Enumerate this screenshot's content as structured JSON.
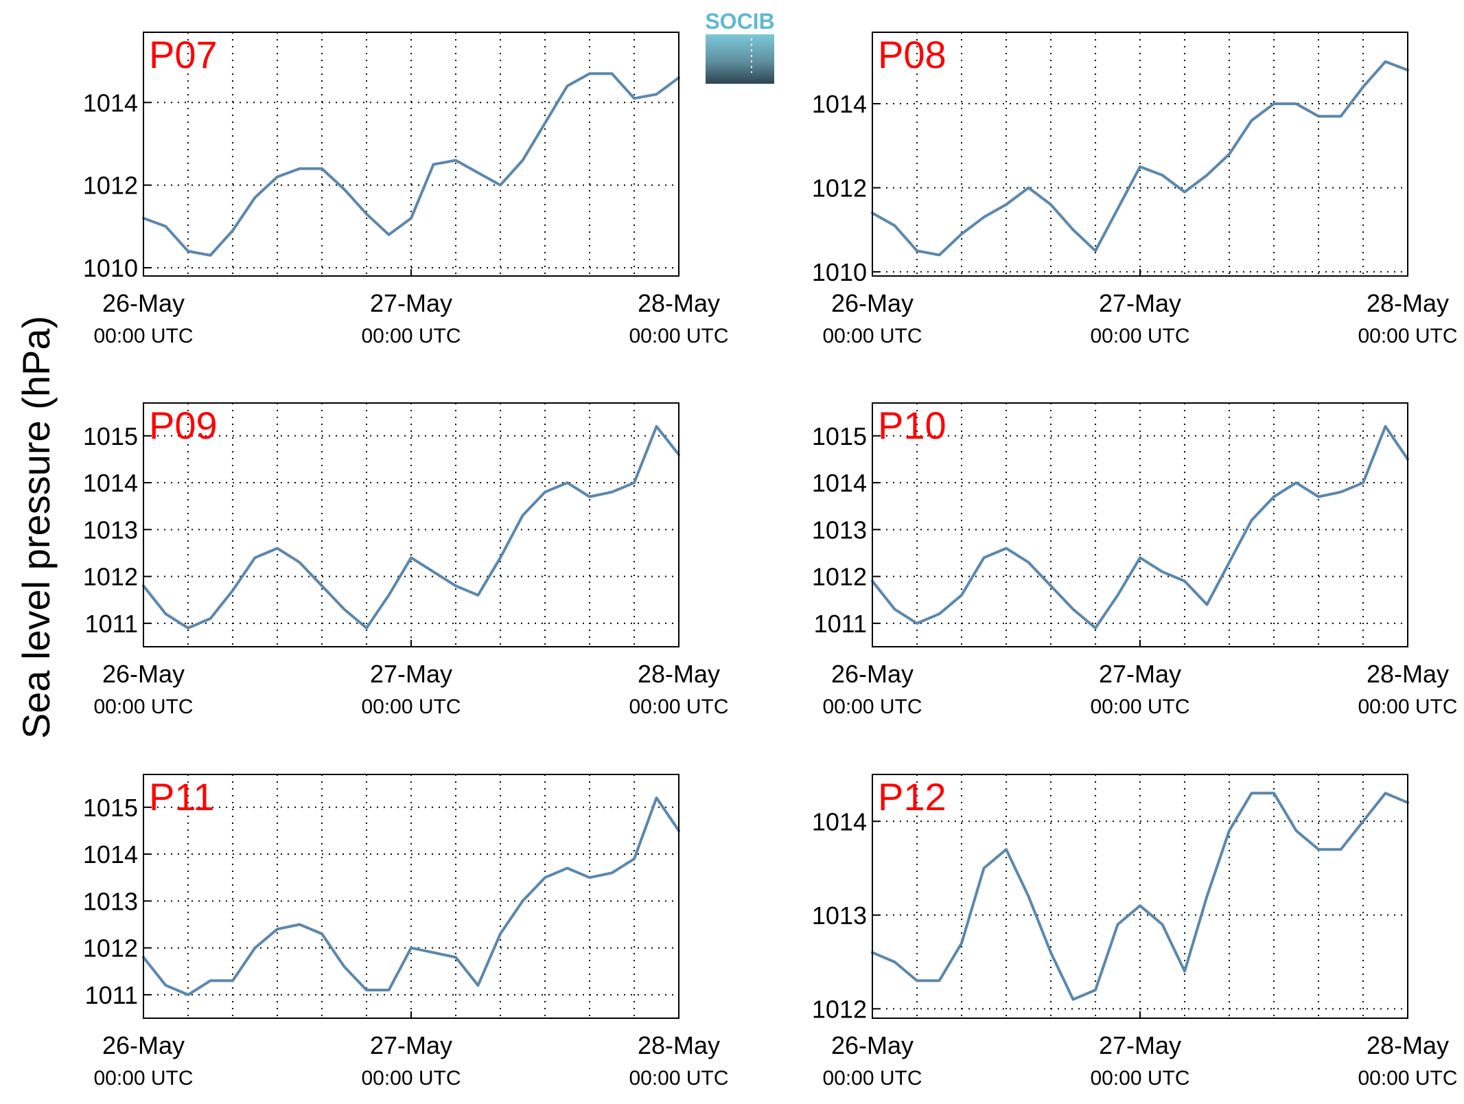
{
  "figure": {
    "ylabel": "Sea level pressure (hPa)",
    "logo_text": "SOCIB",
    "colors": {
      "line": "#5b87ad",
      "panel_title": "#ff0000",
      "axis": "#000000",
      "grid": "#000000"
    }
  },
  "chart_data": [
    {
      "type": "line",
      "title": "P07",
      "x": [
        0,
        2,
        4,
        6,
        8,
        10,
        12,
        14,
        16,
        18,
        20,
        22,
        24,
        26,
        28,
        30,
        32,
        34,
        36,
        38,
        40,
        42,
        44,
        46,
        48
      ],
      "series": [
        {
          "values": [
            1011.2,
            1011.0,
            1010.4,
            1010.3,
            1010.9,
            1011.7,
            1012.2,
            1012.4,
            1012.4,
            1011.9,
            1011.3,
            1010.8,
            1011.2,
            1012.5,
            1012.6,
            1012.3,
            1012.0,
            1012.6,
            1013.5,
            1014.4,
            1014.7,
            1014.7,
            1014.1,
            1014.2,
            1014.6
          ]
        }
      ],
      "xticks": [
        "26-May",
        "27-May",
        "28-May"
      ],
      "xtick_sub": "00:00 UTC",
      "ylim": [
        1009.8,
        1015.7
      ],
      "yticks": [
        1010,
        1012,
        1014
      ],
      "grid": true
    },
    {
      "type": "line",
      "title": "P08",
      "x": [
        0,
        2,
        4,
        6,
        8,
        10,
        12,
        14,
        16,
        18,
        20,
        22,
        24,
        26,
        28,
        30,
        32,
        34,
        36,
        38,
        40,
        42,
        44,
        46,
        48
      ],
      "series": [
        {
          "values": [
            1011.4,
            1011.1,
            1010.5,
            1010.4,
            1010.9,
            1011.3,
            1011.6,
            1012.0,
            1011.6,
            1011.0,
            1010.5,
            1011.5,
            1012.5,
            1012.3,
            1011.9,
            1012.3,
            1012.8,
            1013.6,
            1014.0,
            1014.0,
            1013.7,
            1013.7,
            1014.4,
            1015.0,
            1014.8
          ]
        }
      ],
      "xticks": [
        "26-May",
        "27-May",
        "28-May"
      ],
      "xtick_sub": "00:00 UTC",
      "ylim": [
        1009.9,
        1015.7
      ],
      "yticks": [
        1010,
        1012,
        1014
      ],
      "grid": true
    },
    {
      "type": "line",
      "title": "P09",
      "x": [
        0,
        2,
        4,
        6,
        8,
        10,
        12,
        14,
        16,
        18,
        20,
        22,
        24,
        26,
        28,
        30,
        32,
        34,
        36,
        38,
        40,
        42,
        44,
        46,
        48
      ],
      "series": [
        {
          "values": [
            1011.8,
            1011.2,
            1010.9,
            1011.1,
            1011.7,
            1012.4,
            1012.6,
            1012.3,
            1011.8,
            1011.3,
            1010.9,
            1011.6,
            1012.4,
            1012.1,
            1011.8,
            1011.6,
            1012.4,
            1013.3,
            1013.8,
            1014.0,
            1013.7,
            1013.8,
            1014.0,
            1015.2,
            1014.6
          ]
        }
      ],
      "xticks": [
        "26-May",
        "27-May",
        "28-May"
      ],
      "xtick_sub": "00:00 UTC",
      "ylim": [
        1010.5,
        1015.7
      ],
      "yticks": [
        1011,
        1012,
        1013,
        1014,
        1015
      ],
      "grid": true
    },
    {
      "type": "line",
      "title": "P10",
      "x": [
        0,
        2,
        4,
        6,
        8,
        10,
        12,
        14,
        16,
        18,
        20,
        22,
        24,
        26,
        28,
        30,
        32,
        34,
        36,
        38,
        40,
        42,
        44,
        46,
        48
      ],
      "series": [
        {
          "values": [
            1011.9,
            1011.3,
            1011.0,
            1011.2,
            1011.6,
            1012.4,
            1012.6,
            1012.3,
            1011.8,
            1011.3,
            1010.9,
            1011.6,
            1012.4,
            1012.1,
            1011.9,
            1011.4,
            1012.3,
            1013.2,
            1013.7,
            1014.0,
            1013.7,
            1013.8,
            1014.0,
            1015.2,
            1014.5
          ]
        }
      ],
      "xticks": [
        "26-May",
        "27-May",
        "28-May"
      ],
      "xtick_sub": "00:00 UTC",
      "ylim": [
        1010.5,
        1015.7
      ],
      "yticks": [
        1011,
        1012,
        1013,
        1014,
        1015
      ],
      "grid": true
    },
    {
      "type": "line",
      "title": "P11",
      "x": [
        0,
        2,
        4,
        6,
        8,
        10,
        12,
        14,
        16,
        18,
        20,
        22,
        24,
        26,
        28,
        30,
        32,
        34,
        36,
        38,
        40,
        42,
        44,
        46,
        48
      ],
      "series": [
        {
          "values": [
            1011.8,
            1011.2,
            1011.0,
            1011.3,
            1011.3,
            1012.0,
            1012.4,
            1012.5,
            1012.3,
            1011.6,
            1011.1,
            1011.1,
            1012.0,
            1011.9,
            1011.8,
            1011.2,
            1012.3,
            1013.0,
            1013.5,
            1013.7,
            1013.5,
            1013.6,
            1013.9,
            1015.2,
            1014.5
          ]
        }
      ],
      "xticks": [
        "26-May",
        "27-May",
        "28-May"
      ],
      "xtick_sub": "00:00 UTC",
      "ylim": [
        1010.5,
        1015.7
      ],
      "yticks": [
        1011,
        1012,
        1013,
        1014,
        1015
      ],
      "grid": true
    },
    {
      "type": "line",
      "title": "P12",
      "x": [
        0,
        2,
        4,
        6,
        8,
        10,
        12,
        14,
        16,
        18,
        20,
        22,
        24,
        26,
        28,
        30,
        32,
        34,
        36,
        38,
        40,
        42,
        44,
        46,
        48
      ],
      "series": [
        {
          "values": [
            1012.6,
            1012.5,
            1012.3,
            1012.3,
            1012.7,
            1013.5,
            1013.7,
            1013.2,
            1012.6,
            1012.1,
            1012.2,
            1012.9,
            1013.1,
            1012.9,
            1012.4,
            1013.2,
            1013.9,
            1014.3,
            1014.3,
            1013.9,
            1013.7,
            1013.7,
            1014.0,
            1014.3,
            1014.2
          ]
        }
      ],
      "xticks": [
        "26-May",
        "27-May",
        "28-May"
      ],
      "xtick_sub": "00:00 UTC",
      "ylim": [
        1011.9,
        1014.5
      ],
      "yticks": [
        1012,
        1013,
        1014
      ],
      "grid": true
    }
  ]
}
